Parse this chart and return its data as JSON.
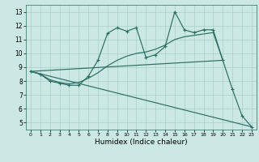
{
  "xlabel": "Humidex (Indice chaleur)",
  "bg_color": "#cce8e4",
  "grid_color": "#aacfcb",
  "line_color": "#2a6e64",
  "xlim": [
    -0.5,
    23.5
  ],
  "ylim": [
    4.5,
    13.5
  ],
  "xticks": [
    0,
    1,
    2,
    3,
    4,
    5,
    6,
    7,
    8,
    9,
    10,
    11,
    12,
    13,
    14,
    15,
    16,
    17,
    18,
    19,
    20,
    21,
    22,
    23
  ],
  "yticks": [
    5,
    6,
    7,
    8,
    9,
    10,
    11,
    12,
    13
  ],
  "line1_x": [
    0,
    1,
    2,
    3,
    4,
    5,
    6,
    7,
    8,
    9,
    10,
    11,
    12,
    13,
    14,
    15,
    16,
    17,
    18,
    19,
    20,
    21,
    22,
    23
  ],
  "line1_y": [
    8.7,
    8.5,
    8.0,
    7.85,
    7.7,
    7.7,
    8.35,
    9.5,
    11.45,
    11.85,
    11.6,
    11.85,
    9.7,
    9.9,
    10.5,
    13.0,
    11.7,
    11.5,
    11.7,
    11.7,
    9.5,
    7.4,
    5.5,
    4.7
  ],
  "line2_x": [
    0,
    23
  ],
  "line2_y": [
    8.7,
    4.7
  ],
  "line3_x": [
    0,
    20
  ],
  "line3_y": [
    8.7,
    9.5
  ],
  "line4_x": [
    0,
    1,
    2,
    3,
    4,
    5,
    6,
    7,
    8,
    9,
    10,
    11,
    12,
    13,
    14,
    15,
    16,
    17,
    18,
    19,
    20
  ],
  "line4_y": [
    8.7,
    8.5,
    8.1,
    7.9,
    7.8,
    7.9,
    8.2,
    8.6,
    9.1,
    9.5,
    9.8,
    10.0,
    10.1,
    10.3,
    10.6,
    11.0,
    11.2,
    11.3,
    11.4,
    11.5,
    9.5
  ]
}
